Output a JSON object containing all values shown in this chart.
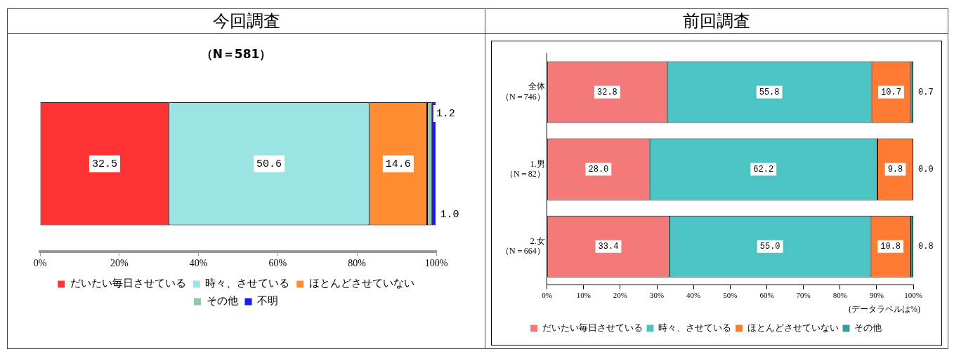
{
  "chart_data": [
    {
      "type": "bar",
      "orientation": "horizontal",
      "stacked": true,
      "title": "今回調査",
      "subtitle": "（N＝581）",
      "categories": [
        null
      ],
      "series": [
        {
          "name": "だいたい毎日させている",
          "color": "#ff3333",
          "values": [
            32.5
          ],
          "value_labels": [
            "32.5"
          ]
        },
        {
          "name": "時々、させている",
          "color": "#99e3e3",
          "values": [
            50.6
          ],
          "value_labels": [
            "50.6"
          ]
        },
        {
          "name": "ほとんどさせていない",
          "color": "#ff8c33",
          "values": [
            14.6
          ],
          "value_labels": [
            "14.6"
          ]
        },
        {
          "name": "その他",
          "color": "#8fc9a8",
          "values": [
            1.2
          ],
          "value_labels": [
            "1.2"
          ]
        },
        {
          "name": "不明",
          "color": "#1a1aff",
          "values": [
            1.0
          ],
          "value_labels": [
            "1.0"
          ]
        }
      ],
      "xlim": [
        0,
        100
      ],
      "xticks": [
        {
          "value": 0,
          "label": "0%"
        },
        {
          "value": 20,
          "label": "20%"
        },
        {
          "value": 40,
          "label": "40%"
        },
        {
          "value": 60,
          "label": "60%"
        },
        {
          "value": 80,
          "label": "80%"
        },
        {
          "value": 100,
          "label": "100%"
        }
      ],
      "legend": "bottom",
      "grid": false
    },
    {
      "type": "bar",
      "orientation": "horizontal",
      "stacked": true,
      "title": "前回調査",
      "categories": [
        "全体（N＝746）",
        "1.男（N＝82）",
        "2.女（N＝664）"
      ],
      "series": [
        {
          "name": "だいたい毎日させている",
          "color": "#f47a7a",
          "values": [
            32.8,
            28.0,
            33.4
          ],
          "value_labels": [
            "32.8",
            "28.0",
            "33.4"
          ]
        },
        {
          "name": "時々、させている",
          "color": "#4cc4c4",
          "values": [
            55.8,
            62.2,
            55.0
          ],
          "value_labels": [
            "55.8",
            "62.2",
            "55.0"
          ]
        },
        {
          "name": "ほとんどさせていない",
          "color": "#ff7a33",
          "values": [
            10.7,
            9.8,
            10.8
          ],
          "value_labels": [
            "10.7",
            "9.8",
            "10.8"
          ]
        },
        {
          "name": "その他",
          "color": "#3a9a9a",
          "values": [
            0.7,
            0.0,
            0.8
          ],
          "value_labels": [
            "0.7",
            "0.0",
            "0.8"
          ]
        }
      ],
      "xlim": [
        0,
        100
      ],
      "xticks": [
        {
          "value": 0,
          "label": "0%"
        },
        {
          "value": 10,
          "label": "10%"
        },
        {
          "value": 20,
          "label": "20%"
        },
        {
          "value": 30,
          "label": "30%"
        },
        {
          "value": 40,
          "label": "40%"
        },
        {
          "value": 50,
          "label": "50%"
        },
        {
          "value": 60,
          "label": "60%"
        },
        {
          "value": 70,
          "label": "70%"
        },
        {
          "value": 80,
          "label": "80%"
        },
        {
          "value": 90,
          "label": "90%"
        },
        {
          "value": 100,
          "label": "100%"
        }
      ],
      "annotations": [
        "(データラベルは%)"
      ],
      "legend": "bottom",
      "grid": false
    }
  ]
}
